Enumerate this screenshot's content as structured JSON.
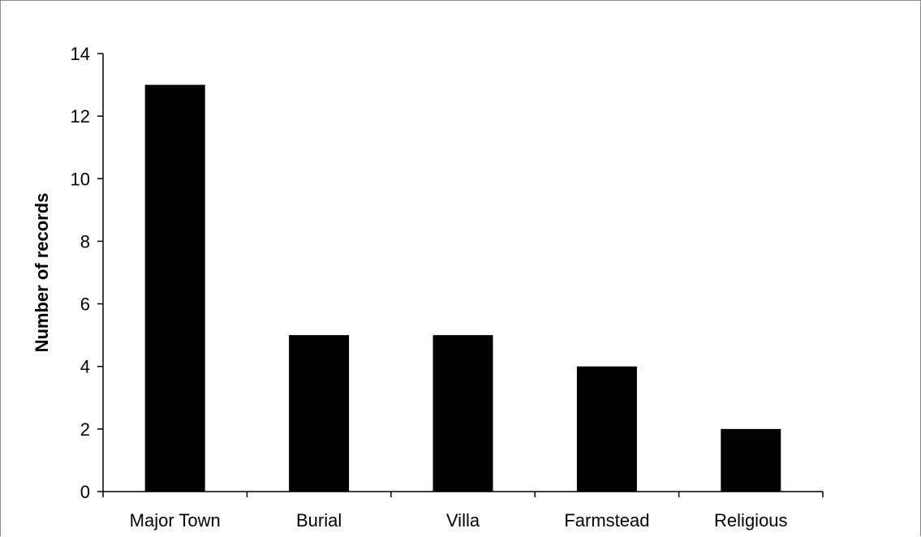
{
  "chart_data": {
    "type": "bar",
    "title": "",
    "xlabel": "",
    "ylabel": "Number of records",
    "categories": [
      "Major Town",
      "Burial",
      "Villa",
      "Farmstead",
      "Religious"
    ],
    "values": [
      13,
      5,
      5,
      4,
      2
    ],
    "ylim": [
      0,
      14
    ],
    "yticks": [
      "0",
      "2",
      "4",
      "6",
      "8",
      "10",
      "12",
      "14"
    ],
    "grid": false,
    "legend": "none",
    "bar_color": "#000000",
    "axis_color": "#000000",
    "frame_color": "#8c8c8c"
  }
}
